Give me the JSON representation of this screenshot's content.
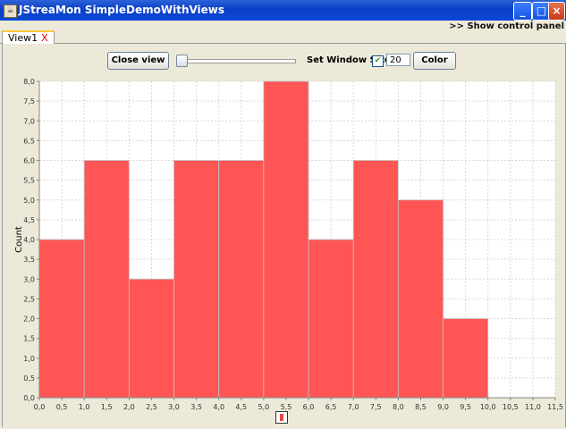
{
  "window": {
    "title": "JStreaMon SimpleDemoWithViews",
    "buttons": [
      "minimize",
      "maximize",
      "close"
    ]
  },
  "show_control_panel_label": ">> Show control panel",
  "tabs": [
    {
      "label": "View1",
      "close": "X"
    }
  ],
  "toolbar": {
    "close_view_label": "Close view",
    "slider_value": 0,
    "set_window_size_label": "Set Window Size",
    "window_size_checked": true,
    "window_size_value": "20",
    "color_label": "Color"
  },
  "colors": {
    "bar": "#ff5555",
    "titlebar": "#0a3fc7"
  },
  "chart_data": {
    "type": "bar",
    "ylabel": "Count",
    "xlim": [
      0,
      11.5
    ],
    "ylim": [
      0,
      8
    ],
    "grid": true,
    "x_ticks": [
      "0,0",
      "0,5",
      "1,0",
      "1,5",
      "2,0",
      "2,5",
      "3,0",
      "3,5",
      "4,0",
      "4,5",
      "5,0",
      "5,5",
      "6,0",
      "6,5",
      "7,0",
      "7,5",
      "8,0",
      "8,5",
      "9,0",
      "9,5",
      "10,0",
      "10,5",
      "11,0",
      "11,5"
    ],
    "y_ticks": [
      "0,0",
      "0,5",
      "1,0",
      "1,5",
      "2,0",
      "2,5",
      "3,0",
      "3,5",
      "4,0",
      "4,5",
      "5,0",
      "5,5",
      "6,0",
      "6,5",
      "7,0",
      "7,5",
      "8,0"
    ],
    "bins": [
      {
        "x0": 0,
        "x1": 1,
        "count": 4
      },
      {
        "x0": 1,
        "x1": 2,
        "count": 6
      },
      {
        "x0": 2,
        "x1": 3,
        "count": 3
      },
      {
        "x0": 3,
        "x1": 4,
        "count": 6
      },
      {
        "x0": 4,
        "x1": 5,
        "count": 6
      },
      {
        "x0": 5,
        "x1": 6,
        "count": 8
      },
      {
        "x0": 6,
        "x1": 7,
        "count": 4
      },
      {
        "x0": 7,
        "x1": 8,
        "count": 6
      },
      {
        "x0": 8,
        "x1": 9,
        "count": 5
      },
      {
        "x0": 9,
        "x1": 10,
        "count": 2
      }
    ]
  }
}
